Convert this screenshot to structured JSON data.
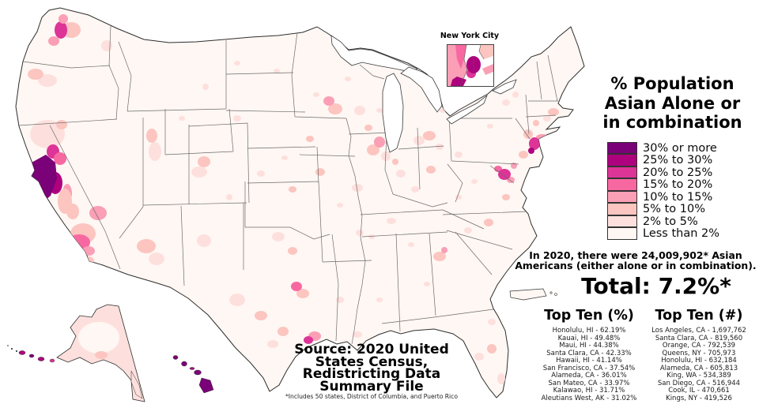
{
  "map": {
    "region": "United States county-level choropleth",
    "base_color": "#fff7f3",
    "outline_color": "#2e2e2e",
    "insets_shown": [
      "Alaska",
      "Hawaii",
      "Puerto Rico",
      "New York City"
    ]
  },
  "inset": {
    "label": "New York City"
  },
  "legend": {
    "title_lines": [
      "% Population",
      "Asian Alone or",
      "in combination"
    ],
    "items": [
      {
        "label": "30% or more",
        "color": "#7a0177"
      },
      {
        "label": "25% to 30%",
        "color": "#ae017e"
      },
      {
        "label": "20% to 25%",
        "color": "#dd3497"
      },
      {
        "label": "15% to 20%",
        "color": "#f768a1"
      },
      {
        "label": "10% to 15%",
        "color": "#fa9fb5"
      },
      {
        "label": "5% to 10%",
        "color": "#fcc5c0"
      },
      {
        "label": "2% to 5%",
        "color": "#fde0dd"
      },
      {
        "label": "Less than 2%",
        "color": "#fff7f3"
      }
    ]
  },
  "annotation": {
    "line1": "In 2020, there were 24,009,902* Asian",
    "line2": "Americans (either alone or in combination)."
  },
  "total_label": "Total: 7.2%*",
  "top_ten_percent": {
    "heading": "Top Ten (%)",
    "items": [
      "Honolulu, HI - 62.19%",
      "Kauai, HI - 49.48%",
      "Maui, HI - 44.38%",
      "Santa Clara, CA - 42.33%",
      "Hawaii, HI - 41.14%",
      "San Francisco, CA - 37.54%",
      "Alameda, CA - 36.01%",
      "San Mateo, CA - 33.97%",
      "Kalawao, HI - 31.71%",
      "Aleutians West, AK - 31.02%"
    ]
  },
  "top_ten_count": {
    "heading": "Top Ten (#)",
    "items": [
      "Los Angeles, CA - 1,697,762",
      "Santa Clara, CA - 819,560",
      "Orange, CA - 792,539",
      "Queens, NY - 705,973",
      "Honolulu, HI - 632,184",
      "Alameda, CA - 605,813",
      "King, WA - 534,389",
      "San Diego, CA - 516,944",
      "Cook, IL - 470,661",
      "Kings, NY - 419,526"
    ]
  },
  "source": {
    "lines": [
      "Source: 2020 United",
      "States Census,",
      "Redistricting Data",
      "Summary File"
    ],
    "footnote": "*Includes 50 states, District of Columbia, and Puerto Rico"
  },
  "chart_data": {
    "type": "choropleth",
    "title": "% Population Asian Alone or in combination",
    "unit": "percent of county population, 2020 Census",
    "classes": [
      {
        "range": "30% or more",
        "color": "#7a0177"
      },
      {
        "range": "25% to 30%",
        "color": "#ae017e"
      },
      {
        "range": "20% to 25%",
        "color": "#dd3497"
      },
      {
        "range": "15% to 20%",
        "color": "#f768a1"
      },
      {
        "range": "10% to 15%",
        "color": "#fa9fb5"
      },
      {
        "range": "5% to 10%",
        "color": "#fcc5c0"
      },
      {
        "range": "2% to 5%",
        "color": "#fde0dd"
      },
      {
        "range": "Less than 2%",
        "color": "#fff7f3"
      }
    ],
    "total_percent": 7.2,
    "total_population": 24009902,
    "top_counties_by_percent": [
      {
        "county": "Honolulu, HI",
        "value": 62.19
      },
      {
        "county": "Kauai, HI",
        "value": 49.48
      },
      {
        "county": "Maui, HI",
        "value": 44.38
      },
      {
        "county": "Santa Clara, CA",
        "value": 42.33
      },
      {
        "county": "Hawaii, HI",
        "value": 41.14
      },
      {
        "county": "San Francisco, CA",
        "value": 37.54
      },
      {
        "county": "Alameda, CA",
        "value": 36.01
      },
      {
        "county": "San Mateo, CA",
        "value": 33.97
      },
      {
        "county": "Kalawao, HI",
        "value": 31.71
      },
      {
        "county": "Aleutians West, AK",
        "value": 31.02
      }
    ],
    "top_counties_by_count": [
      {
        "county": "Los Angeles, CA",
        "value": 1697762
      },
      {
        "county": "Santa Clara, CA",
        "value": 819560
      },
      {
        "county": "Orange, CA",
        "value": 792539
      },
      {
        "county": "Queens, NY",
        "value": 705973
      },
      {
        "county": "Honolulu, HI",
        "value": 632184
      },
      {
        "county": "Alameda, CA",
        "value": 605813
      },
      {
        "county": "King, WA",
        "value": 534389
      },
      {
        "county": "San Diego, CA",
        "value": 516944
      },
      {
        "county": "Cook, IL",
        "value": 470661
      },
      {
        "county": "Kings, NY",
        "value": 419526
      }
    ]
  }
}
